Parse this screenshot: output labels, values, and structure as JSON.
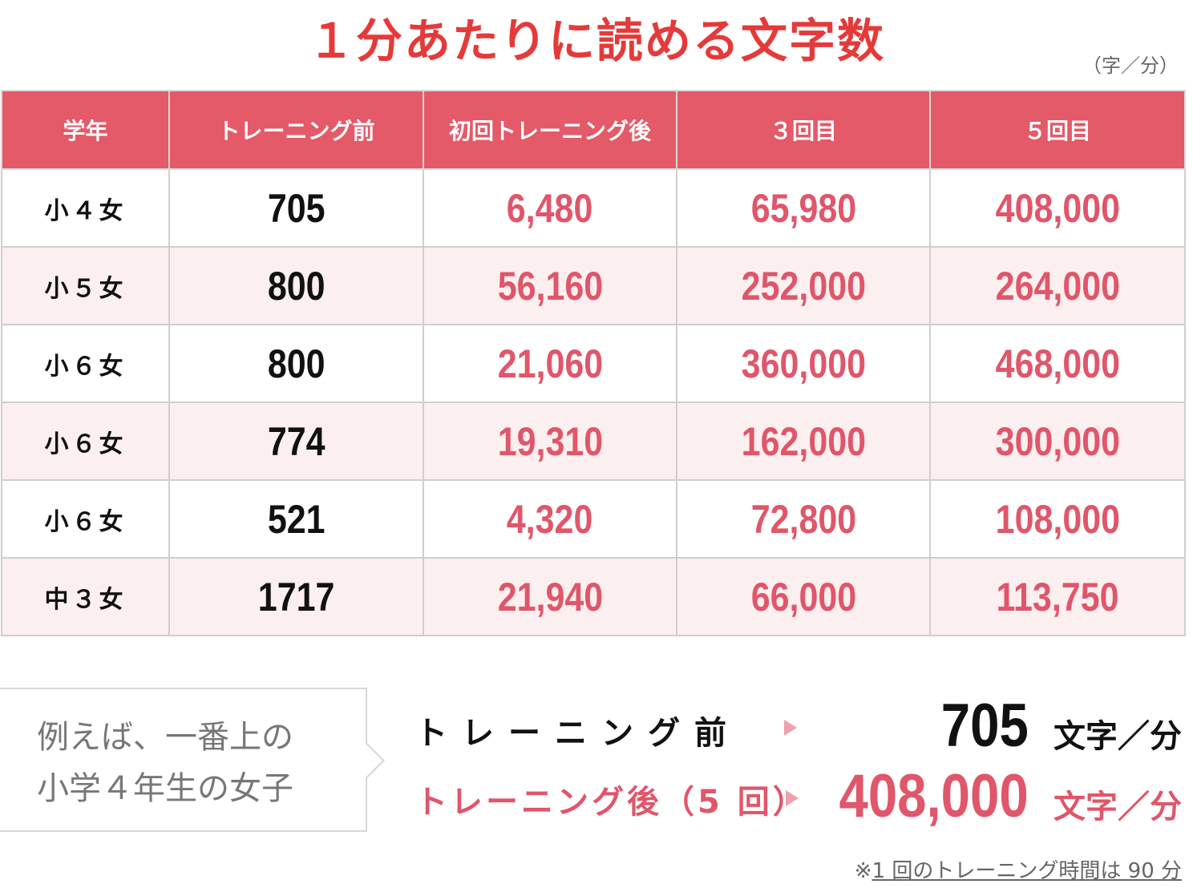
{
  "title": "１分あたりに読める文字数",
  "unit_note": "（字／分）",
  "table": {
    "headers": [
      "学年",
      "トレーニング前",
      "初回トレーニング後",
      "３回目",
      "５回目"
    ],
    "rows": [
      {
        "grade": "小４女",
        "before": "705",
        "first": "6,480",
        "third": "65,980",
        "fifth": "408,000"
      },
      {
        "grade": "小５女",
        "before": "800",
        "first": "56,160",
        "third": "252,000",
        "fifth": "264,000"
      },
      {
        "grade": "小６女",
        "before": "800",
        "first": "21,060",
        "third": "360,000",
        "fifth": "468,000"
      },
      {
        "grade": "小６女",
        "before": "774",
        "first": "19,310",
        "third": "162,000",
        "fifth": "300,000"
      },
      {
        "grade": "小６女",
        "before": "521",
        "first": "4,320",
        "third": "72,800",
        "fifth": "108,000"
      },
      {
        "grade": "中３女",
        "before": "1717",
        "first": "21,940",
        "third": "66,000",
        "fifth": "113,750"
      }
    ]
  },
  "example": {
    "callout_line1": "例えば、一番上の",
    "callout_line2": "小学４年生の女子",
    "before_label": "トレーニング前",
    "before_value": "705",
    "after_label": "トレーニング後（5 回）",
    "after_value": "408,000",
    "per_unit": "文字／分"
  },
  "footnote_mark": "※",
  "footnote_text": "1 回のトレーニング時間は 90 分",
  "colors": {
    "title": "#e53a3a",
    "header_bg": "#e45a68",
    "value_red": "#e0566a",
    "stripe": "#fcefef"
  }
}
